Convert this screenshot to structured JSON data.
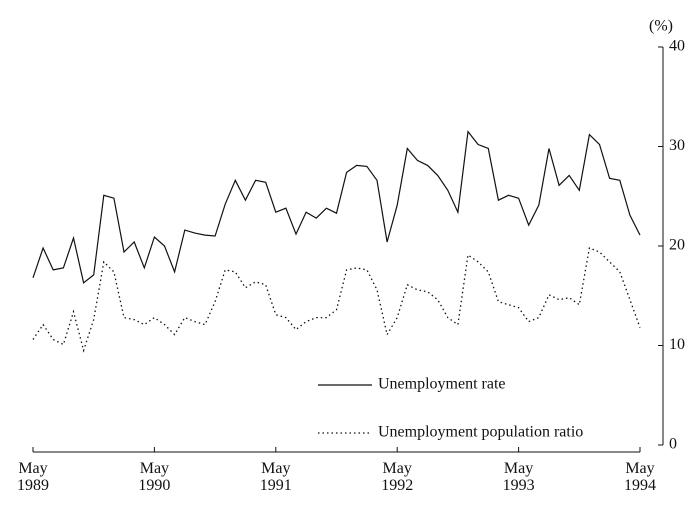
{
  "chart_data": {
    "type": "line",
    "y_label": "(%)",
    "categories": [
      "May\n1989",
      null,
      null,
      null,
      null,
      null,
      null,
      null,
      null,
      null,
      null,
      null,
      "May\n1990",
      null,
      null,
      null,
      null,
      null,
      null,
      null,
      null,
      null,
      null,
      null,
      "May\n1991",
      null,
      null,
      null,
      null,
      null,
      null,
      null,
      null,
      null,
      null,
      null,
      "May\n1992",
      null,
      null,
      null,
      null,
      null,
      null,
      null,
      null,
      null,
      null,
      null,
      "May\n1993",
      null,
      null,
      null,
      null,
      null,
      null,
      null,
      null,
      null,
      null,
      null,
      "May\n1994"
    ],
    "series": [
      {
        "name": "Unemployment rate",
        "color": "#111111",
        "dash": "solid",
        "values": [
          16.8,
          19.8,
          17.6,
          17.8,
          20.8,
          16.3,
          17.1,
          25.1,
          24.8,
          19.4,
          20.4,
          17.8,
          20.9,
          20.0,
          17.4,
          21.6,
          21.3,
          21.1,
          21.0,
          24.2,
          26.6,
          24.6,
          26.6,
          26.4,
          23.4,
          23.8,
          21.2,
          23.4,
          22.8,
          23.8,
          23.3,
          27.4,
          28.1,
          28.0,
          26.6,
          20.4,
          24.1,
          29.8,
          28.6,
          28.1,
          27.1,
          25.6,
          23.4,
          31.5,
          30.2,
          29.8,
          24.6,
          25.1,
          24.8,
          22.1,
          24.1,
          29.8,
          26.1,
          27.1,
          25.6,
          31.2,
          30.2,
          26.8,
          26.6,
          23.1,
          21.1
        ]
      },
      {
        "name": "Unemployment population ratio",
        "color": "#111111",
        "dash": "dotted",
        "values": [
          10.6,
          12.1,
          10.6,
          10.1,
          13.4,
          9.5,
          12.6,
          18.4,
          17.4,
          12.8,
          12.6,
          12.1,
          12.8,
          12.1,
          11.1,
          12.8,
          12.4,
          12.1,
          14.4,
          17.6,
          17.4,
          15.8,
          16.4,
          16.1,
          13.1,
          12.8,
          11.6,
          12.4,
          12.8,
          12.8,
          13.6,
          17.6,
          17.8,
          17.6,
          15.6,
          11.1,
          12.8,
          16.1,
          15.6,
          15.4,
          14.6,
          12.8,
          12.1,
          19.1,
          18.4,
          17.4,
          14.4,
          14.1,
          13.8,
          12.4,
          12.8,
          15.1,
          14.6,
          14.8,
          14.1,
          19.8,
          19.4,
          18.4,
          17.4,
          14.6,
          11.8
        ]
      }
    ],
    "ylim": [
      0,
      40
    ],
    "yticks": [
      0,
      10,
      20,
      30,
      40
    ],
    "y_axis_side": "right",
    "grid": false,
    "legend": "bottom"
  }
}
